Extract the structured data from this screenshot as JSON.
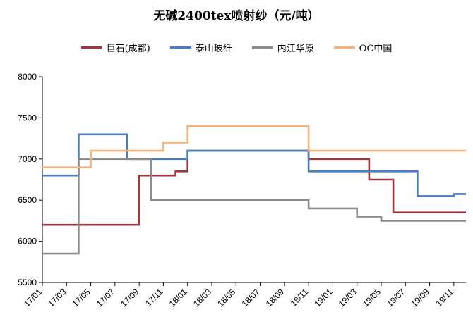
{
  "chart_data": {
    "type": "line",
    "title": "无碱2400tex喷射纱（元/吨）",
    "xlabel": "",
    "ylabel": "",
    "ylim": [
      5500,
      8000
    ],
    "yticks": [
      5500,
      6000,
      6500,
      7000,
      7500,
      8000
    ],
    "xticks": [
      "17/01",
      "17/03",
      "17/05",
      "17/07",
      "17/09",
      "17/11",
      "18/01",
      "18/03",
      "18/05",
      "18/07",
      "18/09",
      "18/11",
      "19/01",
      "19/03",
      "19/05",
      "19/07",
      "19/09",
      "19/11"
    ],
    "x_start": "2017-01",
    "x_end": "2019-12",
    "grid": false,
    "legend_position": "top",
    "series": [
      {
        "name": "巨石(成都)",
        "color": "#a0373c",
        "points": [
          [
            "2017-01",
            6200
          ],
          [
            "2017-09",
            6200
          ],
          [
            "2017-09",
            6800
          ],
          [
            "2017-12",
            6800
          ],
          [
            "2017-12",
            6850
          ],
          [
            "2018-01",
            6850
          ],
          [
            "2018-01",
            7100
          ],
          [
            "2018-11",
            7100
          ],
          [
            "2018-11",
            7000
          ],
          [
            "2019-04",
            7000
          ],
          [
            "2019-04",
            6750
          ],
          [
            "2019-06",
            6750
          ],
          [
            "2019-06",
            6350
          ],
          [
            "2019-12",
            6350
          ]
        ]
      },
      {
        "name": "泰山玻纤",
        "color": "#4a7ebb",
        "points": [
          [
            "2017-01",
            6800
          ],
          [
            "2017-04",
            6800
          ],
          [
            "2017-04",
            7300
          ],
          [
            "2017-08",
            7300
          ],
          [
            "2017-08",
            7000
          ],
          [
            "2018-01",
            7000
          ],
          [
            "2018-01",
            7100
          ],
          [
            "2018-11",
            7100
          ],
          [
            "2018-11",
            6850
          ],
          [
            "2019-08",
            6850
          ],
          [
            "2019-08",
            6550
          ],
          [
            "2019-11",
            6550
          ],
          [
            "2019-11",
            6575
          ],
          [
            "2019-12",
            6575
          ]
        ]
      },
      {
        "name": "内江华原",
        "color": "#8c8c8c",
        "points": [
          [
            "2017-01",
            5850
          ],
          [
            "2017-04",
            5850
          ],
          [
            "2017-04",
            7000
          ],
          [
            "2017-10",
            7000
          ],
          [
            "2017-10",
            6500
          ],
          [
            "2018-11",
            6500
          ],
          [
            "2018-11",
            6400
          ],
          [
            "2019-03",
            6400
          ],
          [
            "2019-03",
            6300
          ],
          [
            "2019-05",
            6300
          ],
          [
            "2019-05",
            6250
          ],
          [
            "2019-12",
            6250
          ]
        ]
      },
      {
        "name": "OC中国",
        "color": "#f5b27b",
        "points": [
          [
            "2017-01",
            6900
          ],
          [
            "2017-05",
            6900
          ],
          [
            "2017-05",
            7100
          ],
          [
            "2017-11",
            7100
          ],
          [
            "2017-11",
            7200
          ],
          [
            "2018-01",
            7200
          ],
          [
            "2018-01",
            7400
          ],
          [
            "2018-11",
            7400
          ],
          [
            "2018-11",
            7100
          ],
          [
            "2019-12",
            7100
          ]
        ]
      }
    ]
  }
}
